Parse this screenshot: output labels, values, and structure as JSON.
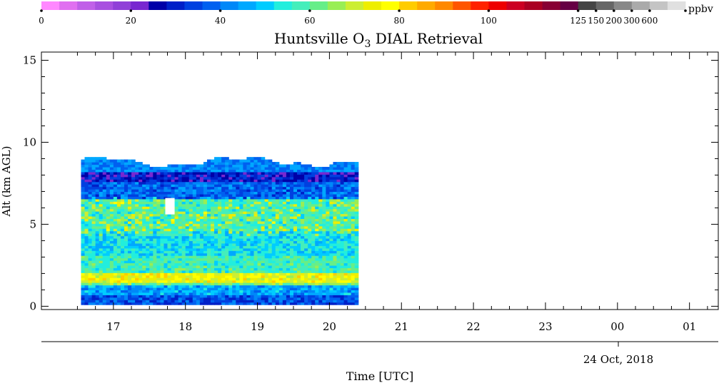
{
  "chart_data": {
    "type": "heatmap",
    "title": "Huntsville O",
    "title_subscript": "3",
    "title_suffix": " DIAL Retrieval",
    "xlabel": "Time [UTC]",
    "ylabel": "Alt (km AGL)",
    "date_label": "24 Oct, 2018",
    "colorbar_unit": "ppbv",
    "colorbar_ticks": [
      "0",
      "20",
      "40",
      "60",
      "80",
      "100",
      "125",
      "150",
      "200",
      "300",
      "600"
    ],
    "x_ticks": [
      "17",
      "18",
      "19",
      "20",
      "21",
      "22",
      "23",
      "00",
      "01"
    ],
    "y_ticks": [
      "0",
      "5",
      "10",
      "15"
    ],
    "x_range_hours": [
      16.0,
      25.4
    ],
    "y_range_km": [
      -0.2,
      15.5
    ],
    "data_extent": {
      "time_start_h": 16.55,
      "time_end_h": 20.38,
      "alt_bottom_km": 0.1,
      "alt_top_km_approx": 8.9
    },
    "grid": false,
    "colors": [
      "#ff88ff",
      "#e070f0",
      "#c060e8",
      "#a850e0",
      "#9040d8",
      "#7828d0",
      "#0000a8",
      "#0020c8",
      "#0040e0",
      "#0060f0",
      "#0088f8",
      "#00a8ff",
      "#00ccff",
      "#22eedd",
      "#44eebb",
      "#66ee88",
      "#99ee55",
      "#ccee33",
      "#eeee00",
      "#ffff00",
      "#ffcc00",
      "#ffaa00",
      "#ff8800",
      "#ff5500",
      "#ff2200",
      "#ee0000",
      "#cc0022",
      "#aa0022",
      "#880033",
      "#660044",
      "#444444",
      "#666666",
      "#888888",
      "#aaaaaa",
      "#c4c4c4",
      "#e0e0e0"
    ],
    "profile_bands_ppbv": [
      {
        "alt_km": [
          0.1,
          0.6
        ],
        "ppbv": 30
      },
      {
        "alt_km": [
          0.6,
          1.2
        ],
        "ppbv": 38
      },
      {
        "alt_km": [
          1.2,
          1.5
        ],
        "ppbv": 52
      },
      {
        "alt_km": [
          1.5,
          2.0
        ],
        "ppbv": 62
      },
      {
        "alt_km": [
          2.0,
          3.0
        ],
        "ppbv": 48
      },
      {
        "alt_km": [
          3.0,
          4.5
        ],
        "ppbv": 44
      },
      {
        "alt_km": [
          4.5,
          6.5
        ],
        "ppbv": 48
      },
      {
        "alt_km": [
          6.5,
          7.5
        ],
        "ppbv": 32
      },
      {
        "alt_km": [
          7.5,
          8.9
        ],
        "ppbv": 24
      }
    ]
  }
}
